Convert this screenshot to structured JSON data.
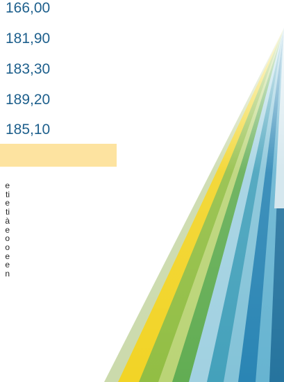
{
  "prices": [
    "166,00",
    "181,90",
    "183,30",
    "189,20",
    "185,10"
  ],
  "text_fragments": [
    "e",
    "ti",
    "e",
    "ti",
    "à",
    "e",
    "o",
    "o",
    "e",
    "e",
    "n"
  ]
}
